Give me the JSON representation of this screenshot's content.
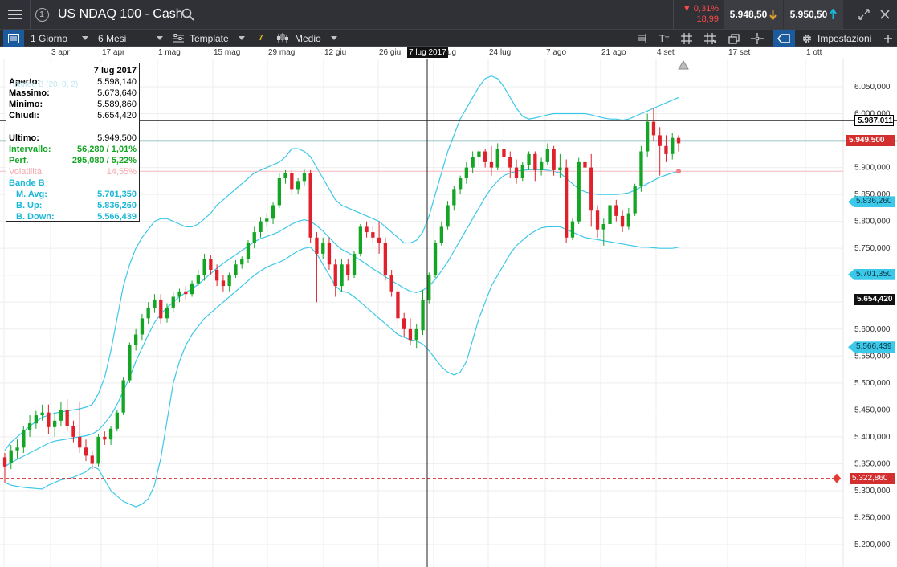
{
  "header": {
    "badge": "1",
    "title": "US NDAQ 100 - Cash",
    "change_pct": "▼ 0,31%",
    "change_abs": "18,99",
    "sell_price": "5.948,50",
    "buy_price": "5.950,50",
    "colors": {
      "bar": "#2f3136",
      "down": "#ff4a4a",
      "sell_arrow": "#e0a030",
      "buy_arrow": "#1ab7d6"
    }
  },
  "toolbar": {
    "interval": "1 Giorno",
    "range": "6 Mesi",
    "template": "Template",
    "indicator_count": "7",
    "chart_style": "Medio",
    "settings": "Impostazioni",
    "icons": [
      "list-icon",
      "text-icon",
      "grid-icon",
      "crosshair-icon",
      "layers-icon",
      "magnet-icon",
      "tag-icon",
      "gear-icon"
    ]
  },
  "date_axis": {
    "labels": [
      "3 apr",
      "17 apr",
      "1 mag",
      "15 mag",
      "29 mag",
      "12 giu",
      "26 giu",
      "24 lug",
      "7 ago",
      "21 ago",
      "4 set",
      "17 set",
      "1 ott"
    ],
    "crosshair_date": "7 lug 2017",
    "ug_fragment": "ug"
  },
  "info": {
    "date": "7 lug 2017",
    "rows": [
      {
        "label": "Aperto:",
        "value": "5.598,140"
      },
      {
        "label": "Massimo:",
        "value": "5.673,640"
      },
      {
        "label": "Minimo:",
        "value": "5.589,860"
      },
      {
        "label": "Chiudi:",
        "value": "5.654,420"
      }
    ],
    "ultimo_label": "Ultimo:",
    "ultimo_value": "5.949,500",
    "intervallo_label": "Intervallo:",
    "intervallo_value": "56,280 / 1,01%",
    "perf_label": "Perf.",
    "perf_value": "295,080 / 5,22%",
    "volatility_label": "Volatilità:",
    "volatility_value": "14,55%",
    "bande_label": "Bande B",
    "bande_rows": [
      {
        "label": "M. Avg:",
        "value": "5.701,350"
      },
      {
        "label": "B. Up:",
        "value": "5.836,260"
      },
      {
        "label": "B. Down:",
        "value": "5.566,439"
      }
    ],
    "legend_ghost": "Bande B (20, 0, 2)"
  },
  "price_axis": {
    "labels": [
      "6.050,000",
      "6.000,000",
      "5.950,000",
      "5.900,000",
      "5.850,000",
      "5.800,000",
      "5.750,000",
      "5.700,000",
      "5.650,000",
      "5.600,000",
      "5.550,000",
      "5.500,000",
      "5.450,000",
      "5.400,000",
      "5.350,000",
      "5.300,000",
      "5.250,000",
      "5.200,000"
    ],
    "tags": {
      "crosshair": "5.987,011",
      "last": "5.949,500",
      "b_up": "5.836,260",
      "m_avg": "5.701,350",
      "close": "5.654,420",
      "b_down": "5.566,439",
      "alert": "5.322,860"
    }
  },
  "chart_data": {
    "type": "candlestick",
    "symbol": "US NDAQ 100 - Cash",
    "interval": "1 Giorno",
    "range": "6 Mesi",
    "ylim": [
      5180,
      6080
    ],
    "indicator": "Bande B (20, 0, 2)",
    "horizontal_lines": {
      "crosshair_price": 5987.011,
      "last_price": 5949.5,
      "alert_level": 5322.86,
      "volatility_level": 5893
    },
    "crosshair_date": "7 lug 2017",
    "colors": {
      "up": "#13a523",
      "down": "#e0202a",
      "band": "#3cc8e8",
      "last_line": "#0b6a78",
      "alert": "#d32f2f"
    },
    "candles": [
      [
        5362,
        5345,
        5370,
        5315
      ],
      [
        5352,
        5375,
        5385,
        5340
      ],
      [
        5375,
        5380,
        5395,
        5360
      ],
      [
        5380,
        5412,
        5420,
        5370
      ],
      [
        5412,
        5425,
        5440,
        5400
      ],
      [
        5425,
        5440,
        5448,
        5415
      ],
      [
        5440,
        5445,
        5460,
        5430
      ],
      [
        5445,
        5418,
        5460,
        5405
      ],
      [
        5418,
        5430,
        5445,
        5400
      ],
      [
        5430,
        5450,
        5465,
        5420
      ],
      [
        5450,
        5420,
        5470,
        5410
      ],
      [
        5420,
        5400,
        5430,
        5390
      ],
      [
        5400,
        5380,
        5465,
        5370
      ],
      [
        5380,
        5365,
        5395,
        5355
      ],
      [
        5365,
        5350,
        5375,
        5340
      ],
      [
        5350,
        5400,
        5405,
        5345
      ],
      [
        5400,
        5395,
        5410,
        5385
      ],
      [
        5395,
        5415,
        5420,
        5385
      ],
      [
        5415,
        5445,
        5450,
        5410
      ],
      [
        5445,
        5505,
        5510,
        5440
      ],
      [
        5505,
        5570,
        5575,
        5500
      ],
      [
        5570,
        5590,
        5600,
        5560
      ],
      [
        5590,
        5620,
        5628,
        5580
      ],
      [
        5620,
        5640,
        5650,
        5610
      ],
      [
        5640,
        5655,
        5665,
        5630
      ],
      [
        5655,
        5620,
        5665,
        5610
      ],
      [
        5620,
        5640,
        5648,
        5612
      ],
      [
        5640,
        5660,
        5670,
        5632
      ],
      [
        5660,
        5670,
        5675,
        5650
      ],
      [
        5670,
        5665,
        5680,
        5655
      ],
      [
        5665,
        5685,
        5690,
        5660
      ],
      [
        5685,
        5700,
        5710,
        5680
      ],
      [
        5700,
        5730,
        5740,
        5690
      ],
      [
        5730,
        5710,
        5738,
        5700
      ],
      [
        5710,
        5690,
        5720,
        5680
      ],
      [
        5690,
        5680,
        5700,
        5670
      ],
      [
        5680,
        5700,
        5705,
        5670
      ],
      [
        5700,
        5720,
        5728,
        5695
      ],
      [
        5720,
        5730,
        5735,
        5712
      ],
      [
        5730,
        5760,
        5765,
        5722
      ],
      [
        5760,
        5780,
        5790,
        5750
      ],
      [
        5780,
        5800,
        5808,
        5770
      ],
      [
        5800,
        5805,
        5815,
        5790
      ],
      [
        5805,
        5830,
        5835,
        5795
      ],
      [
        5830,
        5880,
        5890,
        5825
      ],
      [
        5880,
        5890,
        5895,
        5870
      ],
      [
        5890,
        5860,
        5895,
        5850
      ],
      [
        5860,
        5875,
        5880,
        5850
      ],
      [
        5875,
        5890,
        5898,
        5865
      ],
      [
        5890,
        5770,
        5895,
        5760
      ],
      [
        5770,
        5740,
        5780,
        5650
      ],
      [
        5740,
        5760,
        5770,
        5730
      ],
      [
        5760,
        5720,
        5770,
        5710
      ],
      [
        5720,
        5680,
        5730,
        5660
      ],
      [
        5680,
        5720,
        5730,
        5670
      ],
      [
        5720,
        5700,
        5730,
        5690
      ],
      [
        5700,
        5740,
        5745,
        5695
      ],
      [
        5740,
        5790,
        5795,
        5735
      ],
      [
        5790,
        5780,
        5800,
        5770
      ],
      [
        5780,
        5770,
        5790,
        5760
      ],
      [
        5770,
        5760,
        5800,
        5740
      ],
      [
        5760,
        5700,
        5770,
        5690
      ],
      [
        5700,
        5670,
        5710,
        5660
      ],
      [
        5670,
        5620,
        5680,
        5605
      ],
      [
        5620,
        5600,
        5630,
        5585
      ],
      [
        5600,
        5580,
        5620,
        5570
      ],
      [
        5580,
        5600,
        5610,
        5565
      ],
      [
        5598,
        5654,
        5673,
        5589
      ],
      [
        5654,
        5700,
        5705,
        5648
      ],
      [
        5700,
        5760,
        5765,
        5695
      ],
      [
        5760,
        5790,
        5800,
        5755
      ],
      [
        5790,
        5830,
        5838,
        5785
      ],
      [
        5830,
        5860,
        5865,
        5820
      ],
      [
        5860,
        5880,
        5885,
        5850
      ],
      [
        5880,
        5900,
        5910,
        5870
      ],
      [
        5900,
        5920,
        5930,
        5890
      ],
      [
        5920,
        5930,
        5935,
        5905
      ],
      [
        5930,
        5910,
        5935,
        5900
      ],
      [
        5910,
        5900,
        5940,
        5885
      ],
      [
        5900,
        5935,
        5945,
        5895
      ],
      [
        5935,
        5920,
        5990,
        5855
      ],
      [
        5920,
        5900,
        5930,
        5880
      ],
      [
        5900,
        5880,
        5915,
        5870
      ],
      [
        5880,
        5905,
        5910,
        5875
      ],
      [
        5905,
        5925,
        5930,
        5895
      ],
      [
        5925,
        5895,
        5930,
        5875
      ],
      [
        5895,
        5910,
        5918,
        5885
      ],
      [
        5910,
        5935,
        5945,
        5905
      ],
      [
        5935,
        5895,
        5940,
        5885
      ],
      [
        5895,
        5900,
        5925,
        5880
      ],
      [
        5900,
        5770,
        5915,
        5760
      ],
      [
        5770,
        5800,
        5805,
        5765
      ],
      [
        5800,
        5910,
        5918,
        5795
      ],
      [
        5910,
        5900,
        5920,
        5890
      ],
      [
        5900,
        5820,
        5925,
        5790
      ],
      [
        5820,
        5785,
        5830,
        5770
      ],
      [
        5785,
        5795,
        5805,
        5755
      ],
      [
        5795,
        5830,
        5840,
        5790
      ],
      [
        5830,
        5810,
        5840,
        5800
      ],
      [
        5810,
        5790,
        5820,
        5780
      ],
      [
        5790,
        5815,
        5825,
        5785
      ],
      [
        5815,
        5865,
        5870,
        5810
      ],
      [
        5865,
        5930,
        5940,
        5855
      ],
      [
        5930,
        5985,
        6000,
        5920
      ],
      [
        5985,
        5960,
        6010,
        5950
      ],
      [
        5960,
        5940,
        5975,
        5885
      ],
      [
        5940,
        5925,
        5960,
        5910
      ],
      [
        5925,
        5955,
        5965,
        5915
      ],
      [
        5955,
        5945,
        5960,
        5930
      ]
    ],
    "band_upper": [
      5375,
      5390,
      5400,
      5410,
      5420,
      5428,
      5436,
      5440,
      5444,
      5446,
      5448,
      5450,
      5452,
      5455,
      5460,
      5480,
      5510,
      5560,
      5620,
      5680,
      5720,
      5750,
      5770,
      5785,
      5800,
      5805,
      5805,
      5800,
      5795,
      5790,
      5790,
      5795,
      5805,
      5815,
      5830,
      5840,
      5850,
      5860,
      5870,
      5880,
      5890,
      5895,
      5900,
      5905,
      5910,
      5920,
      5935,
      5935,
      5930,
      5920,
      5900,
      5880,
      5860,
      5840,
      5830,
      5825,
      5820,
      5815,
      5810,
      5805,
      5800,
      5790,
      5780,
      5770,
      5760,
      5760,
      5765,
      5780,
      5810,
      5850,
      5890,
      5930,
      5960,
      5990,
      6010,
      6030,
      6050,
      6065,
      6070,
      6065,
      6050,
      6030,
      6010,
      5995,
      5990,
      5992,
      5995,
      5998,
      6000,
      6000,
      6000,
      6000,
      6000,
      6000,
      5998,
      5995,
      5992,
      5990,
      5990,
      5988,
      5990,
      5995,
      6000,
      6005,
      6010,
      6015,
      6020,
      6025,
      6030,
      6033,
      6036
    ],
    "band_middle": [
      5345,
      5352,
      5358,
      5364,
      5370,
      5376,
      5382,
      5388,
      5392,
      5394,
      5396,
      5398,
      5400,
      5402,
      5405,
      5412,
      5425,
      5440,
      5460,
      5485,
      5510,
      5540,
      5565,
      5590,
      5612,
      5628,
      5640,
      5650,
      5660,
      5668,
      5675,
      5683,
      5693,
      5703,
      5713,
      5722,
      5730,
      5738,
      5746,
      5754,
      5762,
      5768,
      5772,
      5776,
      5781,
      5788,
      5795,
      5800,
      5803,
      5800,
      5792,
      5782,
      5770,
      5758,
      5748,
      5742,
      5735,
      5728,
      5720,
      5712,
      5705,
      5697,
      5690,
      5683,
      5676,
      5670,
      5668,
      5672,
      5680,
      5692,
      5708,
      5725,
      5745,
      5765,
      5785,
      5805,
      5825,
      5845,
      5862,
      5875,
      5885,
      5890,
      5893,
      5895,
      5896,
      5896,
      5896,
      5895,
      5893,
      5890,
      5880,
      5870,
      5860,
      5855,
      5852,
      5850,
      5850,
      5850,
      5850,
      5851,
      5853,
      5858,
      5864,
      5870,
      5876,
      5882,
      5886,
      5890,
      5893,
      5895,
      5897
    ],
    "band_lower": [
      5315,
      5310,
      5308,
      5306,
      5305,
      5304,
      5303,
      5310,
      5315,
      5320,
      5322,
      5325,
      5330,
      5335,
      5345,
      5340,
      5320,
      5300,
      5290,
      5280,
      5275,
      5270,
      5275,
      5285,
      5310,
      5360,
      5430,
      5500,
      5540,
      5570,
      5590,
      5605,
      5620,
      5630,
      5640,
      5650,
      5660,
      5670,
      5680,
      5690,
      5700,
      5708,
      5715,
      5720,
      5724,
      5730,
      5738,
      5745,
      5750,
      5752,
      5740,
      5720,
      5700,
      5680,
      5670,
      5668,
      5660,
      5650,
      5640,
      5630,
      5620,
      5610,
      5600,
      5590,
      5585,
      5580,
      5578,
      5572,
      5560,
      5545,
      5530,
      5520,
      5515,
      5520,
      5540,
      5580,
      5620,
      5650,
      5680,
      5700,
      5720,
      5740,
      5755,
      5765,
      5775,
      5782,
      5788,
      5790,
      5790,
      5790,
      5785,
      5780,
      5775,
      5770,
      5768,
      5766,
      5764,
      5762,
      5760,
      5758,
      5756,
      5754,
      5752,
      5752,
      5751,
      5750,
      5750,
      5750,
      5752,
      5755,
      5760
    ]
  }
}
